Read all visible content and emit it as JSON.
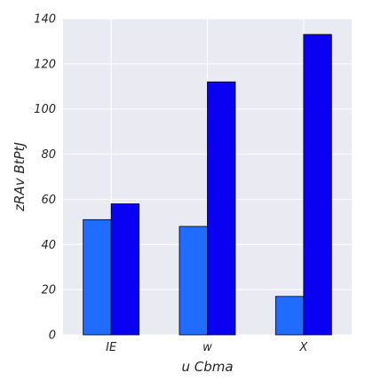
{
  "chart_data": {
    "type": "bar",
    "title": "",
    "xlabel": "u Cbma",
    "ylabel": "zRAv BtPtJ",
    "categories": [
      "IE",
      "w",
      "X"
    ],
    "series": [
      {
        "color": "#1f6cff",
        "values": [
          51,
          48,
          17
        ]
      },
      {
        "color": "#0a00f2",
        "values": [
          58,
          112,
          133
        ]
      }
    ],
    "ylim": [
      0,
      140
    ],
    "yticks": [
      0,
      20,
      40,
      60,
      80,
      100,
      120,
      140
    ],
    "grid": true,
    "legend": "none",
    "background_color": "#eaeaf2",
    "grid_color": "#ffffff"
  }
}
